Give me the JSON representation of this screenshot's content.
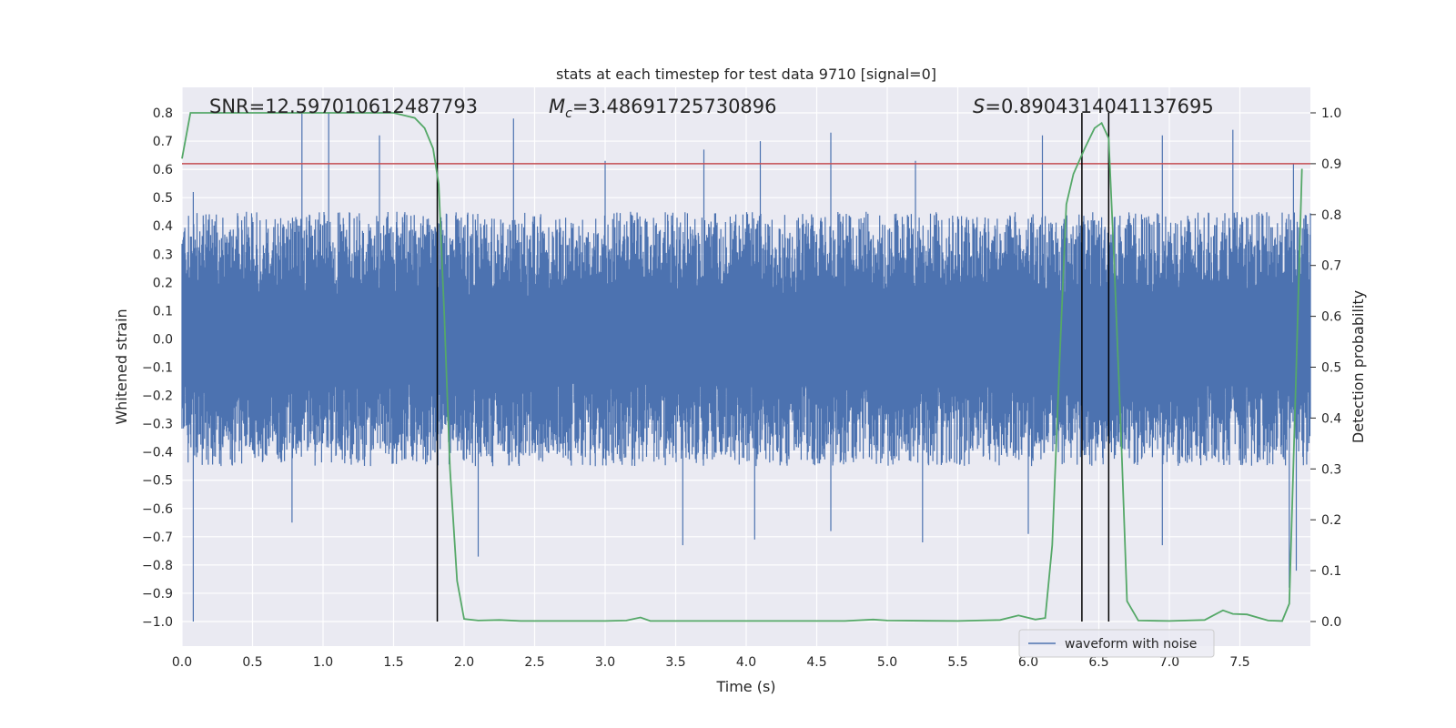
{
  "chart_data": {
    "type": "line",
    "title": "stats at each timestep for test data 9710 [signal=0]",
    "xlabel": "Time (s)",
    "ylabel": "Whitened strain",
    "y2label": "Detection probability",
    "xlim": [
      0.0,
      8.0
    ],
    "ylim": [
      -1.0,
      0.8
    ],
    "y2lim": [
      0.0,
      1.0
    ],
    "grid": true,
    "legend_position": "lower-right",
    "x_ticks": [
      0.0,
      0.5,
      1.0,
      1.5,
      2.0,
      2.5,
      3.0,
      3.5,
      4.0,
      4.5,
      5.0,
      5.5,
      6.0,
      6.5,
      7.0,
      7.5
    ],
    "x_tick_labels": [
      "0.0",
      "0.5",
      "1.0",
      "1.5",
      "2.0",
      "2.5",
      "3.0",
      "3.5",
      "4.0",
      "4.5",
      "5.0",
      "5.5",
      "6.0",
      "6.5",
      "7.0",
      "7.5"
    ],
    "y_ticks": [
      0.8,
      0.7,
      0.6,
      0.5,
      0.4,
      0.3,
      0.2,
      0.1,
      0.0,
      -0.1,
      -0.2,
      -0.3,
      -0.4,
      -0.5,
      -0.6,
      -0.7,
      -0.8,
      -0.9,
      -1.0
    ],
    "y_tick_labels": [
      "0.8",
      "0.7",
      "0.6",
      "0.5",
      "0.4",
      "0.3",
      "0.2",
      "0.1",
      "0.0",
      "−0.1",
      "−0.2",
      "−0.3",
      "−0.4",
      "−0.5",
      "−0.6",
      "−0.7",
      "−0.8",
      "−0.9",
      "−1.0"
    ],
    "y2_ticks": [
      1.0,
      0.9,
      0.8,
      0.7,
      0.6,
      0.5,
      0.4,
      0.3,
      0.2,
      0.1,
      0.0
    ],
    "y2_tick_labels": [
      "1.0",
      "0.9",
      "0.8",
      "0.7",
      "0.6",
      "0.5",
      "0.4",
      "0.3",
      "0.2",
      "0.1",
      "0.0"
    ],
    "annotations": {
      "snr": "SNR=12.597010612487793",
      "mc_symbol": "M",
      "mc_sub": "c",
      "mc_value": "=3.48691725730896",
      "s_symbol": "S",
      "s_value": "=0.8904314041137695"
    },
    "threshold_y2": 0.9,
    "vertical_lines_x": [
      1.81,
      6.38,
      6.57
    ],
    "waveform": {
      "name": "waveform with noise",
      "color": "#4c72b0",
      "x_range": [
        0.0,
        8.0
      ],
      "envelope_upper": 0.45,
      "envelope_lower": -0.45,
      "peaks_upper": [
        {
          "x": 0.08,
          "y": 0.52
        },
        {
          "x": 0.85,
          "y": 0.8
        },
        {
          "x": 1.04,
          "y": 0.8
        },
        {
          "x": 1.4,
          "y": 0.72
        },
        {
          "x": 2.35,
          "y": 0.78
        },
        {
          "x": 3.0,
          "y": 0.63
        },
        {
          "x": 3.7,
          "y": 0.67
        },
        {
          "x": 4.1,
          "y": 0.7
        },
        {
          "x": 4.6,
          "y": 0.73
        },
        {
          "x": 5.2,
          "y": 0.63
        },
        {
          "x": 6.1,
          "y": 0.72
        },
        {
          "x": 6.95,
          "y": 0.72
        },
        {
          "x": 7.45,
          "y": 0.74
        },
        {
          "x": 7.88,
          "y": 0.62
        }
      ],
      "peaks_lower": [
        {
          "x": 0.08,
          "y": -1.0
        },
        {
          "x": 0.78,
          "y": -0.65
        },
        {
          "x": 2.1,
          "y": -0.77
        },
        {
          "x": 3.55,
          "y": -0.73
        },
        {
          "x": 4.06,
          "y": -0.71
        },
        {
          "x": 4.6,
          "y": -0.68
        },
        {
          "x": 5.25,
          "y": -0.72
        },
        {
          "x": 6.0,
          "y": -0.69
        },
        {
          "x": 6.95,
          "y": -0.73
        },
        {
          "x": 7.85,
          "y": -0.88
        },
        {
          "x": 7.9,
          "y": -0.82
        }
      ]
    },
    "probability": {
      "color": "#55a868",
      "axis": "y2",
      "x": [
        0.0,
        0.06,
        0.2,
        0.5,
        1.0,
        1.5,
        1.65,
        1.72,
        1.78,
        1.82,
        1.86,
        1.9,
        1.95,
        2.0,
        2.1,
        2.25,
        2.4,
        3.0,
        3.15,
        3.25,
        3.32,
        3.5,
        4.0,
        4.5,
        4.7,
        4.9,
        5.0,
        5.5,
        5.8,
        5.93,
        6.05,
        6.12,
        6.17,
        6.22,
        6.27,
        6.32,
        6.4,
        6.47,
        6.52,
        6.57,
        6.61,
        6.66,
        6.7,
        6.78,
        7.0,
        7.25,
        7.38,
        7.45,
        7.55,
        7.7,
        7.8,
        7.85,
        7.9,
        7.94
      ],
      "y": [
        0.91,
        1.0,
        1.0,
        1.0,
        1.0,
        1.0,
        0.99,
        0.97,
        0.93,
        0.86,
        0.6,
        0.3,
        0.08,
        0.005,
        0.002,
        0.003,
        0.001,
        0.001,
        0.002,
        0.008,
        0.001,
        0.001,
        0.001,
        0.001,
        0.001,
        0.004,
        0.002,
        0.001,
        0.003,
        0.012,
        0.004,
        0.007,
        0.15,
        0.5,
        0.82,
        0.88,
        0.93,
        0.97,
        0.98,
        0.95,
        0.7,
        0.35,
        0.04,
        0.002,
        0.001,
        0.003,
        0.022,
        0.015,
        0.014,
        0.002,
        0.001,
        0.035,
        0.5,
        0.89
      ]
    },
    "threshold_color": "#c44e52",
    "vertical_line_color": "#000000"
  }
}
